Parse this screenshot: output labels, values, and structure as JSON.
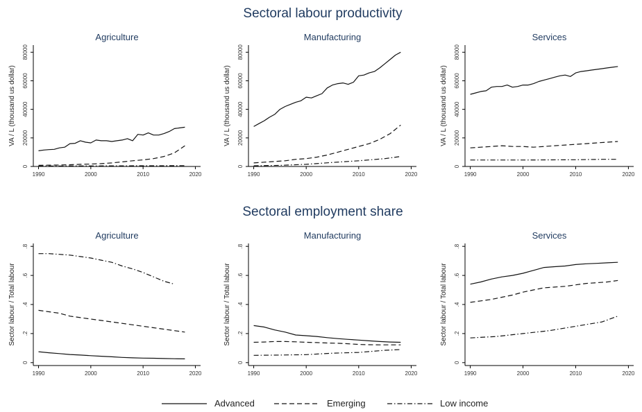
{
  "sections": [
    {
      "title": "Sectoral labour productivity"
    },
    {
      "title": "Sectoral employment share"
    }
  ],
  "legend": [
    {
      "label": "Advanced",
      "dash": "solid"
    },
    {
      "label": "Emerging",
      "dash": "dash"
    },
    {
      "label": "Low income",
      "dash": "dashdot"
    }
  ],
  "chart_data": [
    {
      "type": "line",
      "title": "Agriculture",
      "ylabel": "VA / L (thousand us dollar)",
      "xlim": [
        1989,
        2021
      ],
      "ylim": [
        0,
        85000
      ],
      "xticks": [
        1990,
        2000,
        2010,
        2020
      ],
      "xtick_labels": [
        "1990",
        "2000",
        "2010",
        "2020"
      ],
      "yticks": [
        0,
        20000,
        40000,
        60000,
        80000
      ],
      "ytick_labels": [
        "0",
        "20000",
        "40000",
        "60000",
        "80000"
      ],
      "series": [
        {
          "name": "Advanced",
          "x": [
            1990,
            1991,
            1992,
            1993,
            1994,
            1995,
            1996,
            1997,
            1998,
            1999,
            2000,
            2001,
            2002,
            2003,
            2004,
            2005,
            2006,
            2007,
            2008,
            2009,
            2010,
            2011,
            2012,
            2013,
            2014,
            2015,
            2016,
            2017,
            2018
          ],
          "y": [
            11000,
            11500,
            11800,
            12000,
            13000,
            13500,
            16000,
            16200,
            18000,
            17000,
            16500,
            18500,
            18000,
            18000,
            17500,
            18000,
            18500,
            19500,
            18000,
            22500,
            22000,
            23500,
            22000,
            22000,
            23000,
            24500,
            26500,
            27000,
            27500
          ]
        },
        {
          "name": "Emerging",
          "x": [
            1990,
            1992,
            1994,
            1996,
            1998,
            2000,
            2002,
            2004,
            2006,
            2008,
            2010,
            2012,
            2014,
            2016,
            2018
          ],
          "y": [
            800,
            900,
            1000,
            1200,
            1500,
            1700,
            2000,
            2500,
            3200,
            4000,
            4600,
            5500,
            7000,
            9500,
            14500
          ]
        },
        {
          "name": "Low income",
          "x": [
            1990,
            1995,
            2000,
            2005,
            2010,
            2015,
            2018
          ],
          "y": [
            300,
            350,
            400,
            450,
            500,
            550,
            600
          ]
        }
      ]
    },
    {
      "type": "line",
      "title": "Manufacturing",
      "ylabel": "VA / L (thousand us dollar)",
      "xlim": [
        1989,
        2021
      ],
      "ylim": [
        0,
        85000
      ],
      "xticks": [
        1990,
        2000,
        2010,
        2020
      ],
      "xtick_labels": [
        "1990",
        "2000",
        "2010",
        "2020"
      ],
      "yticks": [
        0,
        20000,
        40000,
        60000,
        80000
      ],
      "ytick_labels": [
        "0",
        "20000",
        "40000",
        "60000",
        "80000"
      ],
      "series": [
        {
          "name": "Advanced",
          "x": [
            1990,
            1991,
            1992,
            1993,
            1994,
            1995,
            1996,
            1997,
            1998,
            1999,
            2000,
            2001,
            2002,
            2003,
            2004,
            2005,
            2006,
            2007,
            2008,
            2009,
            2010,
            2011,
            2012,
            2013,
            2014,
            2015,
            2016,
            2017,
            2018
          ],
          "y": [
            28000,
            30000,
            32000,
            34500,
            36500,
            40000,
            42000,
            43500,
            45000,
            46000,
            48500,
            48000,
            49500,
            51000,
            55000,
            57000,
            58000,
            58500,
            57500,
            59000,
            63500,
            64000,
            65500,
            66500,
            69000,
            72000,
            75000,
            78000,
            80000
          ]
        },
        {
          "name": "Emerging",
          "x": [
            1990,
            1992,
            1994,
            1996,
            1998,
            2000,
            2002,
            2004,
            2006,
            2008,
            2010,
            2012,
            2014,
            2016,
            2018
          ],
          "y": [
            2500,
            3000,
            3500,
            4000,
            5000,
            5500,
            6500,
            8000,
            10000,
            12000,
            14000,
            16000,
            19000,
            23000,
            29000
          ]
        },
        {
          "name": "Low income",
          "x": [
            1990,
            1995,
            2000,
            2005,
            2010,
            2015,
            2018
          ],
          "y": [
            500,
            800,
            1500,
            2800,
            4000,
            5500,
            7000
          ]
        }
      ]
    },
    {
      "type": "line",
      "title": "Services",
      "ylabel": "VA / L (thousand us dollar)",
      "xlim": [
        1989,
        2021
      ],
      "ylim": [
        0,
        85000
      ],
      "xticks": [
        1990,
        2000,
        2010,
        2020
      ],
      "xtick_labels": [
        "1990",
        "2000",
        "2010",
        "2020"
      ],
      "yticks": [
        0,
        20000,
        40000,
        60000,
        80000
      ],
      "ytick_labels": [
        "0",
        "20000",
        "40000",
        "60000",
        "80000"
      ],
      "series": [
        {
          "name": "Advanced",
          "x": [
            1990,
            1991,
            1992,
            1993,
            1994,
            1995,
            1996,
            1997,
            1998,
            1999,
            2000,
            2001,
            2002,
            2003,
            2004,
            2005,
            2006,
            2007,
            2008,
            2009,
            2010,
            2011,
            2012,
            2013,
            2014,
            2015,
            2016,
            2017,
            2018
          ],
          "y": [
            50500,
            51500,
            52500,
            53000,
            55500,
            56000,
            56000,
            57000,
            55500,
            56000,
            57000,
            57000,
            58000,
            59500,
            60500,
            61500,
            62500,
            63500,
            64000,
            63000,
            65500,
            66500,
            67000,
            67500,
            68000,
            68500,
            69000,
            69500,
            70000
          ]
        },
        {
          "name": "Emerging",
          "x": [
            1990,
            1992,
            1994,
            1996,
            1998,
            2000,
            2002,
            2004,
            2006,
            2008,
            2010,
            2012,
            2014,
            2016,
            2018
          ],
          "y": [
            13000,
            13500,
            14000,
            14500,
            14000,
            14000,
            13500,
            14000,
            14500,
            15000,
            15500,
            16000,
            16500,
            17000,
            17500
          ]
        },
        {
          "name": "Low income",
          "x": [
            1990,
            1995,
            2000,
            2005,
            2010,
            2015,
            2018
          ],
          "y": [
            4500,
            4500,
            4500,
            4600,
            4700,
            5000,
            5000
          ]
        }
      ]
    },
    {
      "type": "line",
      "title": "Agriculture",
      "ylabel": "Sector labour / Total labour",
      "xlim": [
        1989,
        2021
      ],
      "ylim": [
        -0.02,
        0.82
      ],
      "xticks": [
        1990,
        2000,
        2010,
        2020
      ],
      "xtick_labels": [
        "1990",
        "2000",
        "2010",
        "2020"
      ],
      "yticks": [
        0,
        0.2,
        0.4,
        0.6,
        0.8
      ],
      "ytick_labels": [
        "0",
        ".2",
        ".4",
        ".6",
        ".8"
      ],
      "series": [
        {
          "name": "Advanced",
          "x": [
            1990,
            1992,
            1994,
            1996,
            1998,
            2000,
            2002,
            2004,
            2006,
            2008,
            2010,
            2012,
            2014,
            2016,
            2018
          ],
          "y": [
            0.075,
            0.068,
            0.062,
            0.056,
            0.052,
            0.048,
            0.044,
            0.04,
            0.036,
            0.033,
            0.031,
            0.03,
            0.028,
            0.027,
            0.026
          ]
        },
        {
          "name": "Emerging",
          "x": [
            1990,
            1992,
            1994,
            1996,
            1998,
            2000,
            2002,
            2004,
            2006,
            2008,
            2010,
            2012,
            2014,
            2016,
            2018
          ],
          "y": [
            0.36,
            0.35,
            0.34,
            0.32,
            0.31,
            0.3,
            0.29,
            0.28,
            0.27,
            0.26,
            0.25,
            0.24,
            0.23,
            0.22,
            0.21
          ]
        },
        {
          "name": "Low income",
          "x": [
            1990,
            1992,
            1994,
            1996,
            1998,
            2000,
            2002,
            2004,
            2006,
            2008,
            2010,
            2012,
            2014,
            2016
          ],
          "y": [
            0.75,
            0.75,
            0.745,
            0.74,
            0.73,
            0.72,
            0.705,
            0.69,
            0.665,
            0.645,
            0.62,
            0.59,
            0.56,
            0.54
          ]
        }
      ]
    },
    {
      "type": "line",
      "title": "Manufacturing",
      "ylabel": "Sector labour / Total labour",
      "xlim": [
        1989,
        2021
      ],
      "ylim": [
        -0.02,
        0.82
      ],
      "xticks": [
        1990,
        2000,
        2010,
        2020
      ],
      "xtick_labels": [
        "1990",
        "2000",
        "2010",
        "2020"
      ],
      "yticks": [
        0,
        0.2,
        0.4,
        0.6,
        0.8
      ],
      "ytick_labels": [
        "0",
        ".2",
        ".4",
        ".6",
        ".8"
      ],
      "series": [
        {
          "name": "Advanced",
          "x": [
            1990,
            1992,
            1994,
            1996,
            1998,
            2000,
            2002,
            2004,
            2006,
            2008,
            2010,
            2012,
            2014,
            2016,
            2018
          ],
          "y": [
            0.255,
            0.245,
            0.225,
            0.21,
            0.19,
            0.185,
            0.18,
            0.172,
            0.165,
            0.16,
            0.155,
            0.15,
            0.145,
            0.142,
            0.14
          ]
        },
        {
          "name": "Emerging",
          "x": [
            1990,
            1992,
            1994,
            1996,
            1998,
            2000,
            2002,
            2004,
            2006,
            2008,
            2010,
            2012,
            2014,
            2016,
            2018
          ],
          "y": [
            0.14,
            0.142,
            0.145,
            0.145,
            0.143,
            0.14,
            0.138,
            0.135,
            0.133,
            0.13,
            0.125,
            0.123,
            0.122,
            0.122,
            0.122
          ]
        },
        {
          "name": "Low income",
          "x": [
            1990,
            1995,
            2000,
            2005,
            2010,
            2015,
            2018
          ],
          "y": [
            0.05,
            0.052,
            0.055,
            0.065,
            0.07,
            0.085,
            0.09
          ]
        }
      ]
    },
    {
      "type": "line",
      "title": "Services",
      "ylabel": "Sector labour / Total labour",
      "xlim": [
        1989,
        2021
      ],
      "ylim": [
        -0.02,
        0.82
      ],
      "xticks": [
        1990,
        2000,
        2010,
        2020
      ],
      "xtick_labels": [
        "1990",
        "2000",
        "2010",
        "2020"
      ],
      "yticks": [
        0,
        0.2,
        0.4,
        0.6,
        0.8
      ],
      "ytick_labels": [
        "0",
        ".2",
        ".4",
        ".6",
        ".8"
      ],
      "series": [
        {
          "name": "Advanced",
          "x": [
            1990,
            1992,
            1994,
            1996,
            1998,
            2000,
            2002,
            2004,
            2006,
            2008,
            2010,
            2012,
            2014,
            2016,
            2018
          ],
          "y": [
            0.54,
            0.555,
            0.575,
            0.59,
            0.6,
            0.615,
            0.635,
            0.655,
            0.66,
            0.665,
            0.675,
            0.68,
            0.683,
            0.687,
            0.69
          ]
        },
        {
          "name": "Emerging",
          "x": [
            1990,
            1992,
            1994,
            1996,
            1998,
            2000,
            2002,
            2004,
            2006,
            2008,
            2010,
            2012,
            2014,
            2016,
            2018
          ],
          "y": [
            0.415,
            0.425,
            0.435,
            0.45,
            0.465,
            0.485,
            0.5,
            0.515,
            0.52,
            0.525,
            0.535,
            0.545,
            0.55,
            0.555,
            0.565
          ]
        },
        {
          "name": "Low income",
          "x": [
            1990,
            1995,
            2000,
            2005,
            2010,
            2015,
            2018
          ],
          "y": [
            0.17,
            0.18,
            0.2,
            0.22,
            0.25,
            0.28,
            0.32
          ]
        }
      ]
    }
  ]
}
